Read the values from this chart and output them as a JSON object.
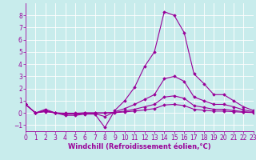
{
  "xlabel": "Windchill (Refroidissement éolien,°C)",
  "background_color": "#c8ecec",
  "line_color": "#990099",
  "grid_color": "#ffffff",
  "x_values": [
    0,
    1,
    2,
    3,
    4,
    5,
    6,
    7,
    8,
    9,
    10,
    11,
    12,
    13,
    14,
    15,
    16,
    17,
    18,
    19,
    20,
    21,
    22,
    23
  ],
  "line1": [
    0.7,
    0.0,
    0.3,
    0.0,
    -0.2,
    -0.2,
    -0.1,
    -0.1,
    -1.2,
    0.2,
    1.0,
    2.1,
    3.8,
    5.0,
    8.3,
    8.0,
    6.6,
    3.2,
    2.4,
    1.5,
    1.5,
    1.0,
    0.5,
    0.2
  ],
  "line2": [
    0.7,
    0.0,
    0.2,
    0.0,
    -0.1,
    -0.1,
    -0.05,
    -0.05,
    -0.3,
    0.1,
    0.35,
    0.7,
    1.1,
    1.5,
    2.8,
    3.0,
    2.6,
    1.3,
    1.0,
    0.7,
    0.7,
    0.5,
    0.25,
    0.1
  ],
  "line3": [
    0.7,
    0.0,
    0.15,
    0.0,
    -0.05,
    -0.05,
    0.0,
    0.0,
    0.0,
    0.05,
    0.15,
    0.3,
    0.5,
    0.7,
    1.3,
    1.4,
    1.2,
    0.6,
    0.45,
    0.3,
    0.3,
    0.2,
    0.1,
    0.05
  ],
  "line4": [
    0.7,
    0.0,
    0.1,
    0.0,
    -0.02,
    -0.02,
    0.0,
    0.0,
    0.0,
    0.02,
    0.08,
    0.15,
    0.25,
    0.35,
    0.65,
    0.7,
    0.6,
    0.3,
    0.22,
    0.15,
    0.15,
    0.1,
    0.05,
    0.02
  ],
  "xlim": [
    0,
    23
  ],
  "ylim": [
    -1.5,
    9.0
  ],
  "yticks": [
    -1,
    0,
    1,
    2,
    3,
    4,
    5,
    6,
    7,
    8
  ],
  "xticks": [
    0,
    1,
    2,
    3,
    4,
    5,
    6,
    7,
    8,
    9,
    10,
    11,
    12,
    13,
    14,
    15,
    16,
    17,
    18,
    19,
    20,
    21,
    22,
    23
  ],
  "tick_fontsize": 5.5,
  "xlabel_fontsize": 6.0
}
